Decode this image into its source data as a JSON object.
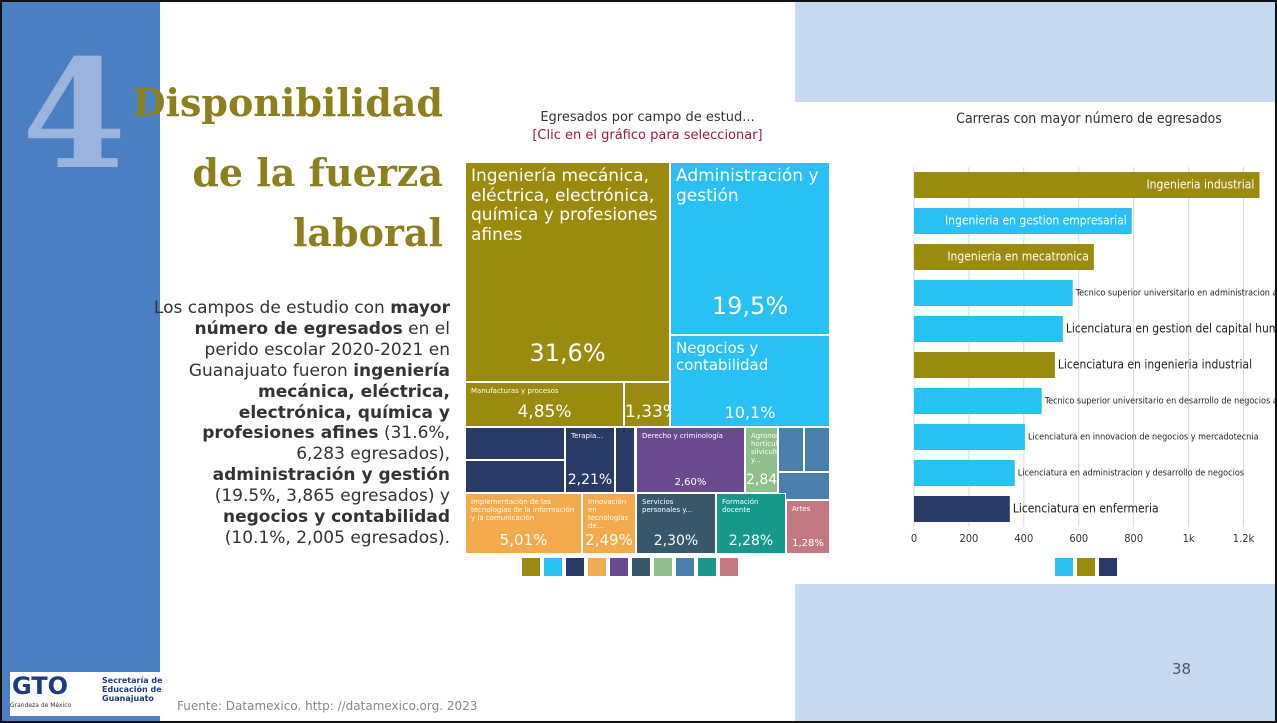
{
  "slide": {
    "number": "4",
    "title_lines": [
      "Disponibilidad",
      "de la fuerza",
      "laboral"
    ],
    "body": [
      {
        "text": "Los campos de estudio con ",
        "bold": false
      },
      {
        "text": "mayor número de egresados",
        "bold": true
      },
      {
        "text": " en el perido escolar 2020-2021 en Guanajuato fueron ",
        "bold": false
      },
      {
        "text": "ingeniería mecánica, eléctrica, electrónica, química y profesiones afines",
        "bold": true
      },
      {
        "text": " (31.6%, 6,283 egresados), ",
        "bold": false
      },
      {
        "text": "administración y gestión",
        "bold": true
      },
      {
        "text": " (19.5%, 3,865 egresados) y ",
        "bold": false
      },
      {
        "text": "negocios y contabilidad",
        "bold": true
      },
      {
        "text": " (10.1%, 2,005 egresados).",
        "bold": false
      }
    ],
    "source": "Fuente: Datamexico. http: //datamexico.org. 2023",
    "page": "38",
    "logo": {
      "brand": "GTO",
      "tagline": "Grandeza de México",
      "org": "Secretaría de Educación de Guanajuato"
    }
  },
  "treemap": {
    "title": "Egresados por campo de estud...",
    "subtitle": "[Clic en el gráfico para seleccionar]",
    "tiles": [
      {
        "label": "Ingeniería mecánica, eléctrica, electrónica, química y profesiones afines",
        "value": 31.6,
        "value_label": "31,6%",
        "color": "#9a8a0e"
      },
      {
        "label": "Manufacturas y procesos",
        "value": 4.85,
        "value_label": "4,85%",
        "color": "#9a8a0e"
      },
      {
        "label": null,
        "value": 1.33,
        "value_label": "1,33%",
        "color": "#9a8a0e"
      },
      {
        "label": "Administración y gestión",
        "value": 19.5,
        "value_label": "19,5%",
        "color": "#29c0f5"
      },
      {
        "label": "Negocios y contabilidad",
        "value": 10.1,
        "value_label": "10,1%",
        "color": "#29c0f5"
      },
      {
        "label": "Terapia...",
        "value": 2.21,
        "value_label": "2,21%",
        "color": "#2a3a66"
      },
      {
        "label": "Derecho y criminología",
        "value": 2.6,
        "value_label": "2,60%",
        "color": "#6a4a8e"
      },
      {
        "label": "Agronomía, horticultura, silvicultura y...",
        "value": 2.84,
        "value_label": "2,84%",
        "color": "#8fbf8a"
      },
      {
        "label": "Implementación de las tecnologías de la información y la comunicación",
        "value": 5.01,
        "value_label": "5,01%",
        "color": "#f2aa4c"
      },
      {
        "label": "Innovación en tecnologías de...",
        "value": 2.49,
        "value_label": "2,49%",
        "color": "#f2aa4c"
      },
      {
        "label": "Servicios personales y...",
        "value": 2.3,
        "value_label": "2,30%",
        "color": "#36586a"
      },
      {
        "label": "Formación docente",
        "value": 2.28,
        "value_label": "2,28%",
        "color": "#17988a"
      },
      {
        "label": "Artes",
        "value": 1.28,
        "value_label": "1,28%",
        "color": "#c27a80"
      }
    ]
  },
  "chart_data": {
    "type": "bar",
    "orientation": "horizontal",
    "title": "Carreras con mayor número de egresados",
    "categories": [
      "Ingenieria industrial",
      "Ingenieria en gestion empresarial",
      "Ingenieria en mecatronica",
      "Tecnico superior universitario en administracion area capital humano",
      "Licenciatura en gestion del capital humano",
      "Licenciatura en ingenieria industrial",
      "Tecnico superior universitario en desarrollo de negocios area mercadotecnia",
      "Licenciatura en innovacion de negocios y mercadotecnia",
      "Licenciatura en administracion y desarrollo de negocios",
      "Licenciatura en enfermeria"
    ],
    "values": [
      1258,
      793,
      655,
      578,
      542,
      513,
      465,
      404,
      367,
      349
    ],
    "colors": [
      "#9a8a0e",
      "#29c0f5",
      "#9a8a0e",
      "#29c0f5",
      "#29c0f5",
      "#9a8a0e",
      "#29c0f5",
      "#29c0f5",
      "#29c0f5",
      "#2a3a66"
    ],
    "xlim": [
      0,
      1260
    ],
    "xticks": [
      0,
      200,
      400,
      600,
      800,
      {
        "value": 1000,
        "label": "1k"
      },
      {
        "value": 1200,
        "label": "1.2k"
      }
    ],
    "grid": true
  }
}
